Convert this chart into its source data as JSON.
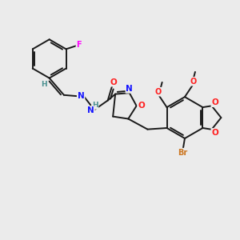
{
  "bg_color": "#ebebeb",
  "bond_color": "#1a1a1a",
  "bond_width": 1.4,
  "atom_colors": {
    "N": "#1414ff",
    "O": "#ff2020",
    "F": "#ff00ff",
    "Br": "#cc7722",
    "H_label": "#4a9090"
  },
  "figsize": [
    3.0,
    3.0
  ],
  "dpi": 100
}
